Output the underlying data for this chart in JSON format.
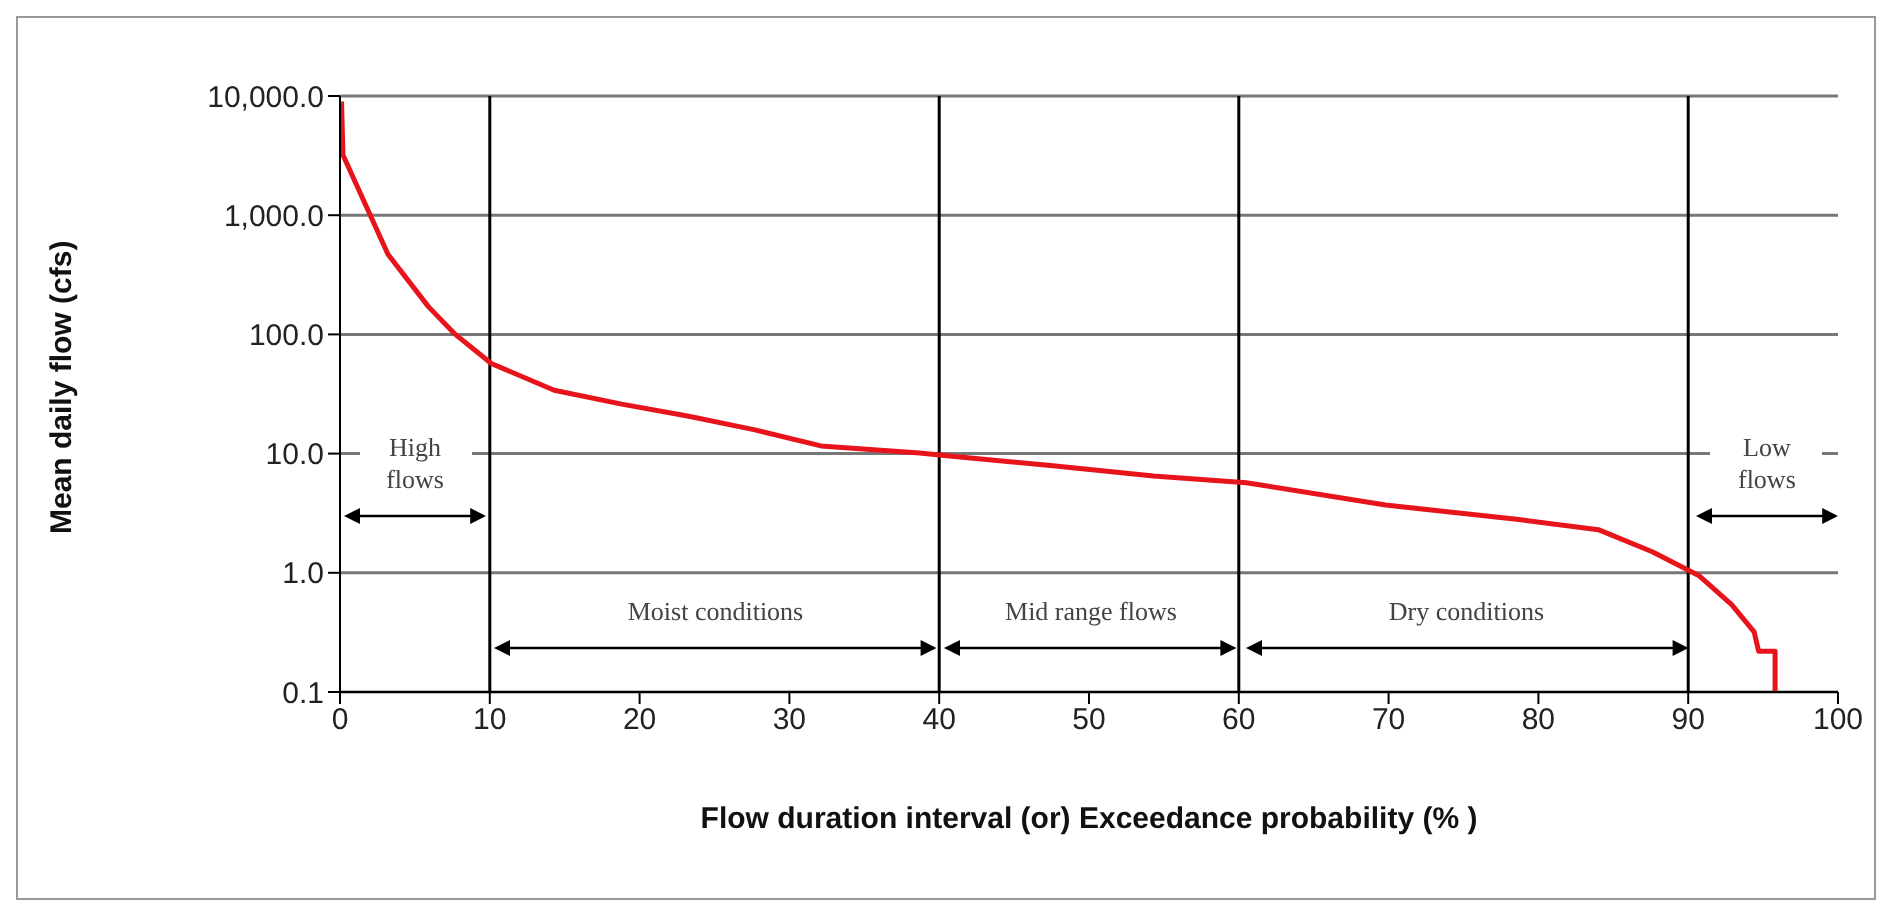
{
  "chart_data": {
    "type": "line",
    "xlabel": "Flow duration interval (or) Exceedance probability (% )",
    "ylabel": "Mean daily flow (cfs)",
    "log": "y",
    "grid": "y",
    "marker": "none",
    "xlim": [
      0,
      100
    ],
    "xticks": [
      0,
      10,
      20,
      30,
      40,
      50,
      60,
      70,
      80,
      90,
      100
    ],
    "ylim": [
      0.1,
      10000
    ],
    "yticks": [
      0.1,
      {
        "value": 1,
        "label": "1.0"
      },
      {
        "value": 10,
        "label": "10.0"
      },
      {
        "value": 100,
        "label": "100.0"
      },
      {
        "value": 1000,
        "label": "1,000.0"
      },
      {
        "value": 10000,
        "label": "10,000.0"
      }
    ],
    "ref_lines": [
      {
        "axis": "x",
        "value": 10,
        "color": "#000000"
      },
      {
        "axis": "x",
        "value": 40,
        "color": "#000000"
      },
      {
        "axis": "x",
        "value": 60,
        "color": "#000000"
      },
      {
        "axis": "x",
        "value": 90,
        "color": "#000000"
      }
    ],
    "annotations": [
      "High flows",
      "Moist conditions",
      "Mid range flows",
      "Dry conditions",
      "Low flows"
    ],
    "series": [
      {
        "color": "#e8141b",
        "x": [
          0.1,
          0.2,
          3.2,
          5.9,
          7.7,
          10.1,
          14.3,
          18.8,
          23.2,
          27.7,
          32.1,
          38.7,
          40.5,
          47.6,
          54.3,
          60.5,
          69.8,
          78.7,
          84,
          87.6,
          90.7,
          92.9,
          94.4,
          94.7,
          95.8,
          95.8
        ],
        "values": [
          9000,
          3200,
          470,
          171,
          100,
          57,
          34,
          26,
          20.7,
          15.8,
          11.6,
          10.1,
          9.6,
          7.9,
          6.5,
          5.7,
          3.7,
          2.8,
          2.3,
          1.5,
          0.95,
          0.54,
          0.32,
          0.22,
          0.22,
          0.1
        ]
      }
    ]
  }
}
